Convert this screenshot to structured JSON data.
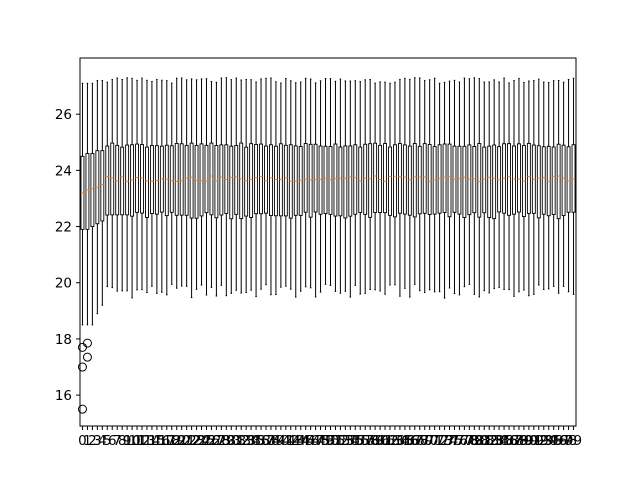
{
  "chart_data": {
    "type": "box",
    "title": "",
    "xlabel": "",
    "ylabel": "",
    "ylim": [
      14.9,
      28.0
    ],
    "yticks": [
      16,
      18,
      20,
      22,
      24,
      26
    ],
    "grid": false,
    "legend": "none",
    "n_boxes": 100,
    "x_tick_labels": [
      "0",
      "1",
      "2",
      "3",
      "4",
      "5",
      "6",
      "7",
      "8",
      "9",
      "10",
      "11",
      "12",
      "13",
      "14",
      "15",
      "16",
      "17",
      "18",
      "19",
      "20",
      "21",
      "22",
      "23",
      "24",
      "25",
      "26",
      "27",
      "28",
      "29",
      "30",
      "31",
      "32",
      "33",
      "34",
      "35",
      "36",
      "37",
      "38",
      "39",
      "40",
      "41",
      "42",
      "43",
      "44",
      "45",
      "46",
      "47",
      "48",
      "49",
      "50",
      "51",
      "52",
      "53",
      "54",
      "55",
      "56",
      "57",
      "58",
      "59",
      "60",
      "61",
      "62",
      "63",
      "64",
      "65",
      "66",
      "67",
      "68",
      "69",
      "70",
      "71",
      "72",
      "73",
      "74",
      "75",
      "76",
      "77",
      "78",
      "79",
      "80",
      "81",
      "82",
      "83",
      "84",
      "85",
      "86",
      "87",
      "88",
      "89",
      "90",
      "91",
      "92",
      "93",
      "94",
      "95",
      "96",
      "97",
      "98",
      "99"
    ],
    "typical_box": {
      "whisker_low": 19.7,
      "q1": 22.4,
      "median": 23.7,
      "q3": 24.9,
      "whisker_high": 27.2
    },
    "first_boxes": [
      {
        "index": 0,
        "whisker_low": 18.5,
        "q1": 21.9,
        "median": 23.2,
        "q3": 24.5,
        "whisker_high": 27.1,
        "outliers": [
          15.5,
          17.0,
          17.7
        ]
      },
      {
        "index": 1,
        "whisker_low": 18.5,
        "q1": 21.9,
        "median": 23.3,
        "q3": 24.6,
        "whisker_high": 27.1,
        "outliers": [
          17.35,
          17.85
        ]
      },
      {
        "index": 2,
        "whisker_low": 18.5,
        "q1": 22.0,
        "median": 23.35,
        "q3": 24.6,
        "whisker_high": 27.1,
        "outliers": []
      },
      {
        "index": 3,
        "whisker_low": 18.9,
        "q1": 22.1,
        "median": 23.4,
        "q3": 24.7,
        "whisker_high": 27.2,
        "outliers": []
      },
      {
        "index": 4,
        "whisker_low": 19.2,
        "q1": 22.2,
        "median": 23.5,
        "q3": 24.7,
        "whisker_high": 27.2,
        "outliers": []
      }
    ],
    "colors": {
      "box": "#000000",
      "median": "#ff7f0e",
      "axes": "#000000",
      "background": "#ffffff"
    }
  }
}
